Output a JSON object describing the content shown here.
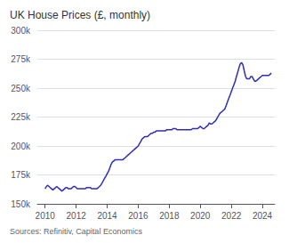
{
  "chart_data": {
    "type": "line",
    "title": "UK House Prices (£, monthly)",
    "annotations": [
      "Sources: Refinitiv, Capital Economics"
    ],
    "color": "#2e2eb8",
    "grid": true,
    "xlim": [
      2009.5,
      2024.8
    ],
    "xticks": [
      2010,
      2012,
      2014,
      2016,
      2018,
      2020,
      2022,
      2024
    ],
    "ylim": [
      150000,
      300000
    ],
    "yticks": [
      {
        "value": 150000,
        "label": "150k"
      },
      {
        "value": 175000,
        "label": "175k"
      },
      {
        "value": 200000,
        "label": "200k"
      },
      {
        "value": 225000,
        "label": "225k"
      },
      {
        "value": 250000,
        "label": "250k"
      },
      {
        "value": 275000,
        "label": "275k"
      },
      {
        "value": 300000,
        "label": "300k"
      }
    ],
    "x": [
      2010.0,
      2010.08,
      2010.17,
      2010.25,
      2010.33,
      2010.42,
      2010.5,
      2010.58,
      2010.67,
      2010.75,
      2010.83,
      2010.92,
      2011.0,
      2011.08,
      2011.17,
      2011.25,
      2011.33,
      2011.42,
      2011.5,
      2011.58,
      2011.67,
      2011.75,
      2011.83,
      2011.92,
      2012.0,
      2012.08,
      2012.17,
      2012.25,
      2012.33,
      2012.42,
      2012.5,
      2012.58,
      2012.67,
      2012.75,
      2012.83,
      2012.92,
      2013.0,
      2013.08,
      2013.17,
      2013.25,
      2013.33,
      2013.42,
      2013.5,
      2013.58,
      2013.67,
      2013.75,
      2013.83,
      2013.92,
      2014.0,
      2014.08,
      2014.17,
      2014.25,
      2014.33,
      2014.42,
      2014.5,
      2014.58,
      2014.67,
      2014.75,
      2014.83,
      2014.92,
      2015.0,
      2015.08,
      2015.17,
      2015.25,
      2015.33,
      2015.42,
      2015.5,
      2015.58,
      2015.67,
      2015.75,
      2015.83,
      2015.92,
      2016.0,
      2016.08,
      2016.17,
      2016.25,
      2016.33,
      2016.42,
      2016.5,
      2016.58,
      2016.67,
      2016.75,
      2016.83,
      2016.92,
      2017.0,
      2017.08,
      2017.17,
      2017.25,
      2017.33,
      2017.42,
      2017.5,
      2017.58,
      2017.67,
      2017.75,
      2017.83,
      2017.92,
      2018.0,
      2018.08,
      2018.17,
      2018.25,
      2018.33,
      2018.42,
      2018.5,
      2018.58,
      2018.67,
      2018.75,
      2018.83,
      2018.92,
      2019.0,
      2019.08,
      2019.17,
      2019.25,
      2019.33,
      2019.42,
      2019.5,
      2019.58,
      2019.67,
      2019.75,
      2019.83,
      2019.92,
      2020.0,
      2020.08,
      2020.17,
      2020.25,
      2020.33,
      2020.42,
      2020.5,
      2020.58,
      2020.67,
      2020.75,
      2020.83,
      2020.92,
      2021.0,
      2021.08,
      2021.17,
      2021.25,
      2021.33,
      2021.42,
      2021.5,
      2021.58,
      2021.67,
      2021.75,
      2021.83,
      2021.92,
      2022.0,
      2022.08,
      2022.17,
      2022.25,
      2022.33,
      2022.42,
      2022.5,
      2022.58,
      2022.67,
      2022.75,
      2022.83,
      2022.92,
      2023.0,
      2023.08,
      2023.17,
      2023.25,
      2023.33,
      2023.42,
      2023.5,
      2023.58,
      2023.67,
      2023.75,
      2023.83,
      2023.92,
      2024.0,
      2024.08,
      2024.17,
      2024.25,
      2024.33,
      2024.42,
      2024.5,
      2024.58
    ],
    "values": [
      163000,
      165000,
      166000,
      165000,
      164000,
      163000,
      162000,
      163000,
      164000,
      165000,
      164000,
      163000,
      162000,
      161000,
      162000,
      163000,
      164000,
      164000,
      163000,
      163000,
      163000,
      164000,
      165000,
      165000,
      164000,
      163000,
      163000,
      163000,
      163000,
      163000,
      163000,
      163000,
      164000,
      164000,
      164000,
      164000,
      163000,
      163000,
      163000,
      163000,
      163000,
      164000,
      165000,
      166000,
      168000,
      170000,
      172000,
      174000,
      176000,
      178000,
      181000,
      184000,
      186000,
      187000,
      188000,
      188000,
      188000,
      188000,
      188000,
      188000,
      188000,
      189000,
      190000,
      191000,
      192000,
      193000,
      194000,
      195000,
      196000,
      197000,
      198000,
      199000,
      200000,
      202000,
      204000,
      206000,
      207000,
      208000,
      208000,
      208000,
      209000,
      210000,
      211000,
      211000,
      212000,
      212000,
      213000,
      213000,
      213000,
      213000,
      213000,
      213000,
      213000,
      213000,
      214000,
      214000,
      214000,
      214000,
      214000,
      215000,
      215000,
      215000,
      214000,
      214000,
      214000,
      214000,
      214000,
      214000,
      214000,
      214000,
      214000,
      214000,
      214000,
      214000,
      215000,
      215000,
      215000,
      215000,
      215000,
      216000,
      217000,
      216000,
      215000,
      215000,
      216000,
      217000,
      218000,
      220000,
      219000,
      219000,
      220000,
      221000,
      222000,
      224000,
      226000,
      228000,
      229000,
      230000,
      231000,
      232000,
      235000,
      238000,
      241000,
      244000,
      247000,
      250000,
      253000,
      256000,
      260000,
      264000,
      268000,
      271000,
      272000,
      270000,
      265000,
      260000,
      258000,
      258000,
      258000,
      260000,
      260000,
      258000,
      256000,
      256000,
      257000,
      258000,
      259000,
      260000,
      261000,
      261000,
      261000,
      261000,
      261000,
      261000,
      262000,
      263000
    ]
  }
}
